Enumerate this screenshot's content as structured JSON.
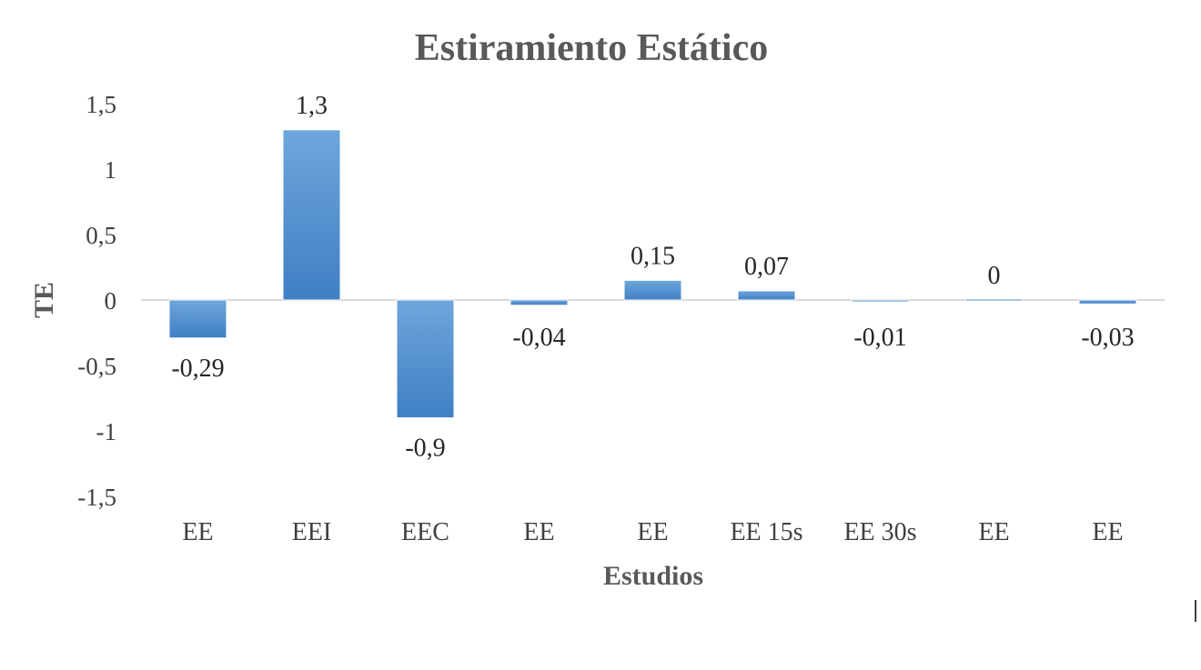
{
  "chart_data": {
    "type": "bar",
    "title": "Estiramiento Estático",
    "xlabel": "Estudios",
    "ylabel": "TE",
    "ylim": [
      -1.5,
      1.5
    ],
    "yticks": [
      "1,5",
      "1",
      "0,5",
      "0",
      "-0,5",
      "-1",
      "-1,5"
    ],
    "ytick_values": [
      1.5,
      1,
      0.5,
      0,
      -0.5,
      -1,
      -1.5
    ],
    "categories": [
      "EE",
      "EEI",
      "EEC",
      "EE",
      "EE",
      "EE 15s",
      "EE 30s",
      "EE",
      "EE"
    ],
    "values": [
      -0.29,
      1.3,
      -0.9,
      -0.04,
      0.15,
      0.07,
      -0.01,
      0,
      -0.03
    ],
    "data_labels": [
      "-0,29",
      "1,3",
      "-0,9",
      "-0,04",
      "0,15",
      "0,07",
      "-0,01",
      "0",
      "-0,03"
    ],
    "grid": false,
    "legend": "none",
    "colors": {
      "bar_top": "#6fa6dc",
      "bar_bottom": "#3f7fc4",
      "zero_line": "#d9d9d9"
    }
  }
}
